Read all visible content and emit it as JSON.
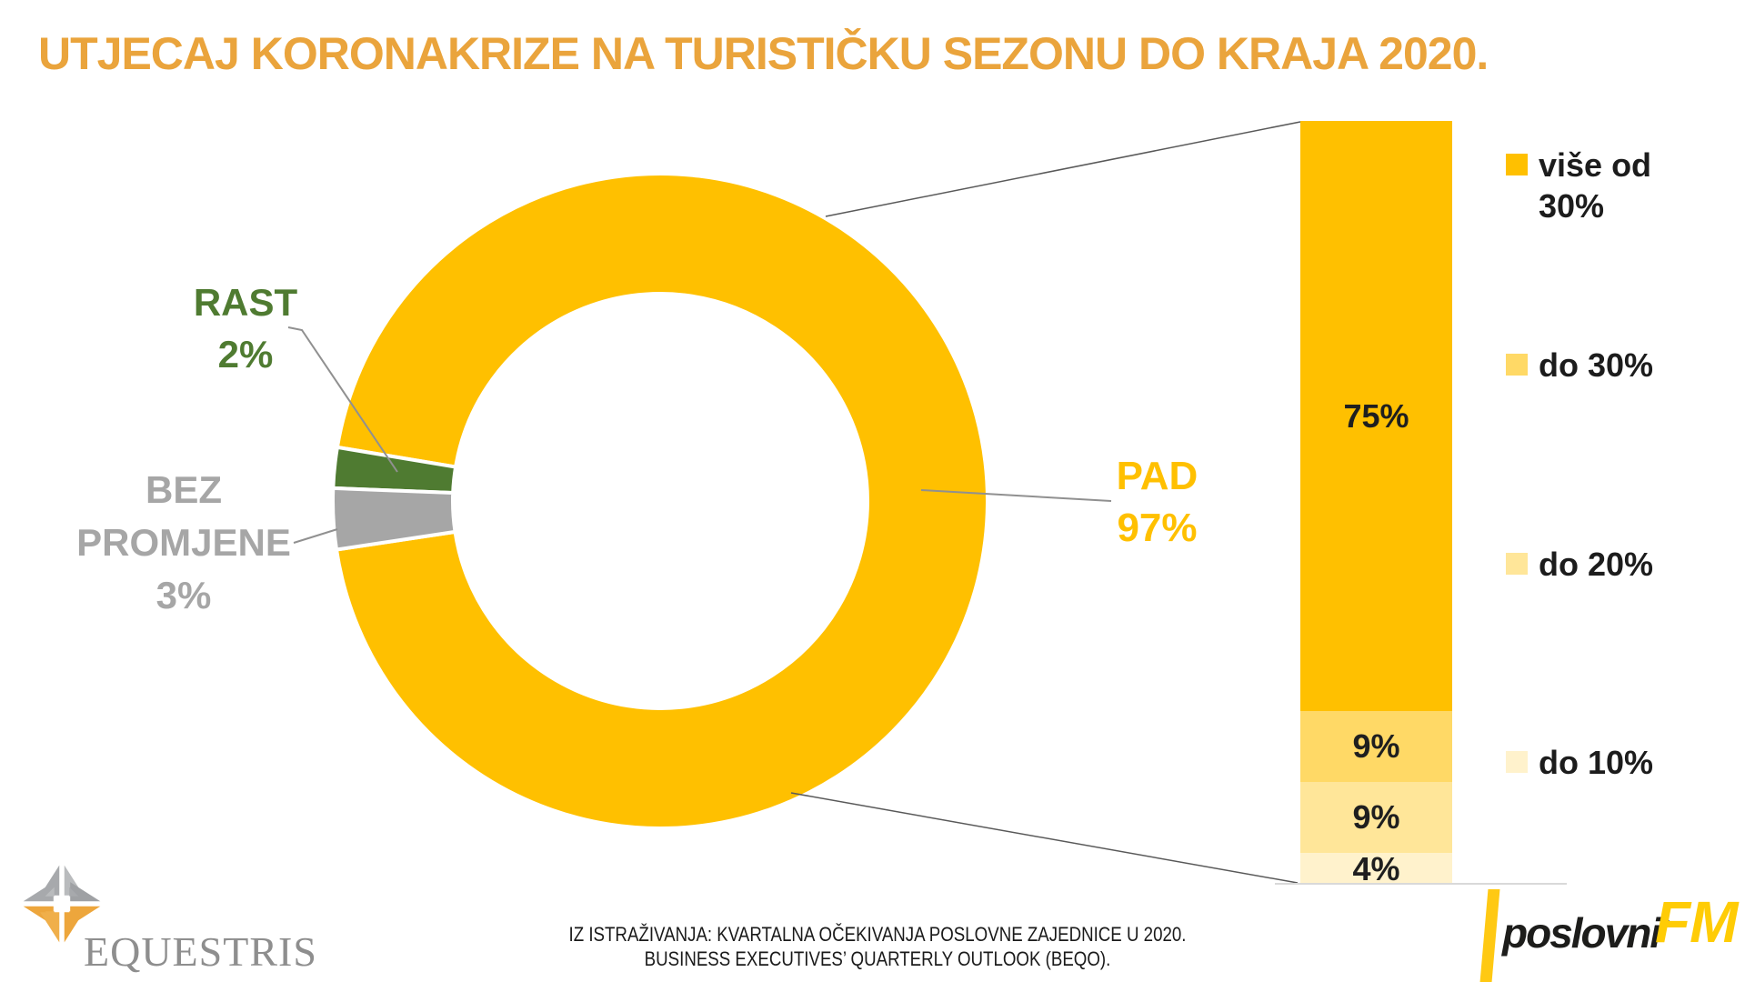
{
  "title": "UTJECAJ KORONAKRIZE NA TURISTIČKU SEZONU DO KRAJA 2020.",
  "donut": {
    "labels": {
      "rast": {
        "name": "RAST",
        "value": "2%"
      },
      "bez": {
        "name": "BEZ PROMJENE",
        "value": "3%"
      },
      "pad": {
        "name": "PAD",
        "value": "97%"
      }
    }
  },
  "chart_data": [
    {
      "type": "pie",
      "donut": true,
      "categories": [
        "PAD",
        "RAST",
        "BEZ PROMJENE"
      ],
      "values": [
        97,
        2,
        3
      ],
      "colors": [
        "#FFC000",
        "#4F7B31",
        "#A6A6A6"
      ],
      "labels": [
        "PAD 97%",
        "RAST 2%",
        "BEZ PROMJENE 3%"
      ],
      "legend_position": "none"
    },
    {
      "type": "bar",
      "stacked": true,
      "categories": [
        "PAD 97% breakdown"
      ],
      "series": [
        {
          "name": "više od 30%",
          "values": [
            75
          ],
          "label": "75%",
          "color": "#FFC000"
        },
        {
          "name": "do 30%",
          "values": [
            9
          ],
          "label": "9%",
          "color": "#FFD966"
        },
        {
          "name": "do 20%",
          "values": [
            9
          ],
          "label": "9%",
          "color": "#FFE699"
        },
        {
          "name": "do 10%",
          "values": [
            4
          ],
          "label": "4%",
          "color": "#FFF2CC"
        }
      ],
      "ylim": [
        0,
        97
      ],
      "grid": false,
      "legend_position": "right"
    }
  ],
  "footer": {
    "line1": "IZ ISTRAŽIVANJA: KVARTALNA OČEKIVANJA POSLOVNE ZAJEDNICE U 2020.",
    "line2": "BUSINESS EXECUTIVES’ QUARTERLY OUTLOOK (BEQO)."
  },
  "logos": {
    "equestris": {
      "text": "EQUESTRIS"
    },
    "poslovni_fm": {
      "word": "poslovni",
      "reg": "®",
      "fm": "FM"
    }
  },
  "colors": {
    "title": "#EAA43C",
    "pad_yellow": "#FFC000",
    "rast_green": "#4F7B31",
    "bez_gray": "#A6A6A6",
    "tint_30": "#FFD966",
    "tint_20": "#FFE699",
    "tint_10": "#FFF2CC",
    "axis": "#D9D9D9"
  }
}
